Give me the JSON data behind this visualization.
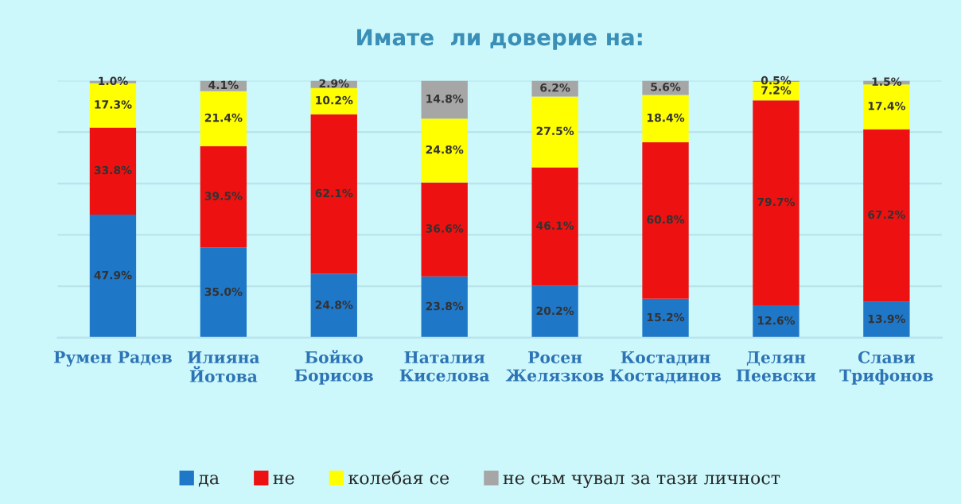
{
  "chart_data": {
    "type": "bar",
    "title": "Имате  ли доверие на:",
    "stacked": true,
    "legend": "bottom",
    "grid": "y",
    "tick_labels": "x",
    "categories": [
      "Румен Радев",
      "Илияна\nЙотова",
      "Бойко\nБорисов",
      "Наталия\nКиселова",
      "Росен\nЖелязков",
      "Костадин\nКостадинов",
      "Делян\nПеевски",
      "Слави\nТрифонов"
    ],
    "ylim": [
      0,
      100
    ],
    "yticks": [
      {
        "value": 0,
        "label": null
      },
      {
        "value": 20,
        "label": null
      },
      {
        "value": 40,
        "label": null
      },
      {
        "value": 60,
        "label": null
      },
      {
        "value": 80,
        "label": null
      },
      {
        "value": 100,
        "label": null
      }
    ],
    "series": [
      {
        "name": "да",
        "color": "#1f77c8",
        "values": [
          47.9,
          35.0,
          24.8,
          23.8,
          20.2,
          15.2,
          12.6,
          13.9
        ],
        "value_labels": [
          "47.9%",
          "35.0%",
          "24.8%",
          "23.8%",
          "20.2%",
          "15.2%",
          "12.6%",
          "13.9%"
        ]
      },
      {
        "name": "не",
        "color": "#ee1111",
        "values": [
          33.8,
          39.5,
          62.1,
          36.6,
          46.1,
          60.8,
          79.7,
          67.2
        ],
        "value_labels": [
          "33.8%",
          "39.5%",
          "62.1%",
          "36.6%",
          "46.1%",
          "60.8%",
          "79.7%",
          "67.2%"
        ]
      },
      {
        "name": "колебая се",
        "color": "#ffff00",
        "values": [
          17.3,
          21.4,
          10.2,
          24.8,
          27.5,
          18.4,
          7.2,
          17.4
        ],
        "value_labels": [
          "17.3%",
          "21.4%",
          "10.2%",
          "24.8%",
          "27.5%",
          "18.4%",
          "7.2%",
          "17.4%"
        ]
      },
      {
        "name": "не съм чувал за тази личност",
        "color": "#a6a6a6",
        "values": [
          1.0,
          4.1,
          2.9,
          14.8,
          6.2,
          5.6,
          0.5,
          1.5
        ],
        "value_labels": [
          "1.0%",
          "4.1%",
          "2.9%",
          "14.8%",
          "6.2%",
          "5.6%",
          "0.5%",
          "1.5%"
        ]
      }
    ]
  }
}
